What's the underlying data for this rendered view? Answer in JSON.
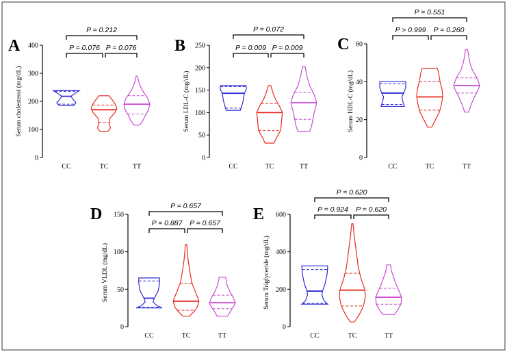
{
  "figure": {
    "background": "#ffffff"
  },
  "colors": {
    "CC": "#2b2bd6",
    "TC": "#e8281e",
    "TT": "#c94bd6"
  },
  "chart_data": [
    {
      "type": "violin",
      "panel": "A",
      "ylabel": "Serum cholesterol (mg/dL)",
      "categories": [
        "CC",
        "TC",
        "TT"
      ],
      "yticks": [
        0,
        100,
        200,
        300,
        400
      ],
      "ylim": [
        0,
        400
      ],
      "groups": [
        {
          "name": "CC",
          "min": 185,
          "max": 238,
          "q1": 190,
          "median": 218,
          "q3": 235,
          "profile": [
            [
              185,
              0.55
            ],
            [
              195,
              0.75
            ],
            [
              205,
              0.55
            ],
            [
              218,
              0.35
            ],
            [
              228,
              0.65
            ],
            [
              238,
              1.0
            ]
          ]
        },
        {
          "name": "TC",
          "min": 93,
          "max": 220,
          "q1": 125,
          "median": 170,
          "q3": 187,
          "profile": [
            [
              93,
              0.3
            ],
            [
              105,
              0.5
            ],
            [
              120,
              0.4
            ],
            [
              140,
              0.45
            ],
            [
              160,
              0.85
            ],
            [
              175,
              1.0
            ],
            [
              195,
              0.8
            ],
            [
              210,
              0.55
            ],
            [
              220,
              0.4
            ]
          ]
        },
        {
          "name": "TT",
          "min": 115,
          "max": 290,
          "q1": 155,
          "median": 190,
          "q3": 220,
          "profile": [
            [
              115,
              0.2
            ],
            [
              130,
              0.45
            ],
            [
              150,
              0.65
            ],
            [
              170,
              0.9
            ],
            [
              190,
              1.0
            ],
            [
              210,
              0.85
            ],
            [
              230,
              0.55
            ],
            [
              250,
              0.3
            ],
            [
              270,
              0.15
            ],
            [
              290,
              0.05
            ]
          ]
        }
      ],
      "comparisons": [
        {
          "pair": [
            "CC",
            "TC"
          ],
          "label": "P = 0.076",
          "level": 1
        },
        {
          "pair": [
            "TC",
            "TT"
          ],
          "label": "P = 0.076",
          "level": 1
        },
        {
          "pair": [
            "CC",
            "TT"
          ],
          "label": "P = 0.212",
          "level": 2
        }
      ]
    },
    {
      "type": "violin",
      "panel": "B",
      "ylabel": "Serum LDL-C (mg/dL)",
      "categories": [
        "CC",
        "TC",
        "TT"
      ],
      "yticks": [
        0,
        50,
        100,
        150,
        200,
        250
      ],
      "ylim": [
        0,
        250
      ],
      "groups": [
        {
          "name": "CC",
          "min": 105,
          "max": 160,
          "q1": 110,
          "median": 143,
          "q3": 158,
          "profile": [
            [
              105,
              0.55
            ],
            [
              115,
              0.65
            ],
            [
              125,
              0.75
            ],
            [
              143,
              0.85
            ],
            [
              152,
              1.0
            ],
            [
              160,
              1.0
            ]
          ]
        },
        {
          "name": "TC",
          "min": 32,
          "max": 160,
          "q1": 60,
          "median": 100,
          "q3": 120,
          "profile": [
            [
              32,
              0.35
            ],
            [
              45,
              0.55
            ],
            [
              60,
              0.85
            ],
            [
              75,
              0.9
            ],
            [
              90,
              0.95
            ],
            [
              100,
              1.0
            ],
            [
              115,
              0.75
            ],
            [
              130,
              0.45
            ],
            [
              145,
              0.25
            ],
            [
              160,
              0.1
            ]
          ]
        },
        {
          "name": "TT",
          "min": 58,
          "max": 202,
          "q1": 85,
          "median": 122,
          "q3": 145,
          "profile": [
            [
              58,
              0.45
            ],
            [
              70,
              0.6
            ],
            [
              85,
              0.7
            ],
            [
              100,
              0.8
            ],
            [
              122,
              1.0
            ],
            [
              140,
              0.8
            ],
            [
              160,
              0.45
            ],
            [
              180,
              0.25
            ],
            [
              202,
              0.1
            ]
          ]
        }
      ],
      "comparisons": [
        {
          "pair": [
            "CC",
            "TC"
          ],
          "label": "P = 0.009",
          "level": 1
        },
        {
          "pair": [
            "TC",
            "TT"
          ],
          "label": "P = 0.009",
          "level": 1
        },
        {
          "pair": [
            "CC",
            "TT"
          ],
          "label": "P = 0.072",
          "level": 2
        }
      ]
    },
    {
      "type": "violin",
      "panel": "C",
      "ylabel": "Serum HDL-C (mg/dL)",
      "categories": [
        "CC",
        "TC",
        "TT"
      ],
      "yticks": [
        0,
        20,
        40,
        60
      ],
      "ylim": [
        0,
        60
      ],
      "groups": [
        {
          "name": "CC",
          "min": 27,
          "max": 40,
          "q1": 28,
          "median": 34,
          "q3": 39,
          "profile": [
            [
              27,
              0.9
            ],
            [
              29,
              0.8
            ],
            [
              32,
              0.7
            ],
            [
              34,
              0.85
            ],
            [
              37,
              1.0
            ],
            [
              40,
              1.0
            ]
          ]
        },
        {
          "name": "TC",
          "min": 16,
          "max": 47,
          "q1": 25,
          "median": 32,
          "q3": 40,
          "profile": [
            [
              16,
              0.15
            ],
            [
              20,
              0.45
            ],
            [
              24,
              0.75
            ],
            [
              28,
              0.9
            ],
            [
              32,
              1.0
            ],
            [
              36,
              0.95
            ],
            [
              40,
              0.8
            ],
            [
              44,
              0.7
            ],
            [
              47,
              0.6
            ]
          ]
        },
        {
          "name": "TT",
          "min": 24,
          "max": 57,
          "q1": 34,
          "median": 38,
          "q3": 42,
          "profile": [
            [
              24,
              0.15
            ],
            [
              28,
              0.35
            ],
            [
              32,
              0.6
            ],
            [
              36,
              0.9
            ],
            [
              38,
              1.0
            ],
            [
              42,
              0.8
            ],
            [
              46,
              0.45
            ],
            [
              50,
              0.25
            ],
            [
              54,
              0.15
            ],
            [
              57,
              0.08
            ]
          ]
        }
      ],
      "comparisons": [
        {
          "pair": [
            "CC",
            "TC"
          ],
          "label": "P > 0.999",
          "level": 1
        },
        {
          "pair": [
            "TC",
            "TT"
          ],
          "label": "P = 0.260",
          "level": 1
        },
        {
          "pair": [
            "CC",
            "TT"
          ],
          "label": "P = 0.551",
          "level": 2
        }
      ]
    },
    {
      "type": "violin",
      "panel": "D",
      "ylabel": "Serum VLDL (mg/dL)",
      "categories": [
        "CC",
        "TC",
        "TT"
      ],
      "yticks": [
        0,
        50,
        100,
        150
      ],
      "ylim": [
        0,
        150
      ],
      "groups": [
        {
          "name": "CC",
          "min": 25,
          "max": 65,
          "q1": 26,
          "median": 38,
          "q3": 61,
          "profile": [
            [
              25,
              1.0
            ],
            [
              28,
              0.6
            ],
            [
              33,
              0.3
            ],
            [
              38,
              0.4
            ],
            [
              48,
              0.7
            ],
            [
              58,
              0.8
            ],
            [
              65,
              0.8
            ]
          ]
        },
        {
          "name": "TC",
          "min": 14,
          "max": 110,
          "q1": 22,
          "median": 34,
          "q3": 58,
          "profile": [
            [
              14,
              0.25
            ],
            [
              20,
              0.6
            ],
            [
              26,
              0.85
            ],
            [
              34,
              1.0
            ],
            [
              45,
              0.75
            ],
            [
              58,
              0.45
            ],
            [
              72,
              0.3
            ],
            [
              90,
              0.15
            ],
            [
              110,
              0.05
            ]
          ]
        },
        {
          "name": "TT",
          "min": 14,
          "max": 66,
          "q1": 24,
          "median": 32,
          "q3": 42,
          "profile": [
            [
              14,
              0.4
            ],
            [
              20,
              0.6
            ],
            [
              28,
              0.9
            ],
            [
              32,
              1.0
            ],
            [
              40,
              0.8
            ],
            [
              48,
              0.55
            ],
            [
              56,
              0.35
            ],
            [
              66,
              0.25
            ]
          ]
        }
      ],
      "comparisons": [
        {
          "pair": [
            "CC",
            "TC"
          ],
          "label": "P = 0.887",
          "level": 1
        },
        {
          "pair": [
            "TC",
            "TT"
          ],
          "label": "P = 0.657",
          "level": 1
        },
        {
          "pair": [
            "CC",
            "TT"
          ],
          "label": "P = 0.657",
          "level": 2
        }
      ]
    },
    {
      "type": "violin",
      "panel": "E",
      "ylabel": "Serum Triglyceride (mg/dL)",
      "categories": [
        "CC",
        "TC",
        "TT"
      ],
      "yticks": [
        0,
        200,
        400,
        600
      ],
      "ylim": [
        0,
        600
      ],
      "groups": [
        {
          "name": "CC",
          "min": 120,
          "max": 325,
          "q1": 125,
          "median": 190,
          "q3": 305,
          "profile": [
            [
              120,
              1.0
            ],
            [
              140,
              0.7
            ],
            [
              170,
              0.55
            ],
            [
              190,
              0.6
            ],
            [
              230,
              0.8
            ],
            [
              280,
              0.95
            ],
            [
              325,
              1.0
            ]
          ]
        },
        {
          "name": "TC",
          "min": 25,
          "max": 550,
          "q1": 110,
          "median": 195,
          "q3": 285,
          "profile": [
            [
              25,
              0.15
            ],
            [
              60,
              0.5
            ],
            [
              110,
              0.85
            ],
            [
              160,
              1.0
            ],
            [
              200,
              0.95
            ],
            [
              260,
              0.65
            ],
            [
              320,
              0.45
            ],
            [
              400,
              0.3
            ],
            [
              480,
              0.15
            ],
            [
              550,
              0.05
            ]
          ]
        },
        {
          "name": "TT",
          "min": 65,
          "max": 330,
          "q1": 120,
          "median": 157,
          "q3": 205,
          "profile": [
            [
              65,
              0.45
            ],
            [
              90,
              0.7
            ],
            [
              120,
              0.95
            ],
            [
              157,
              1.0
            ],
            [
              190,
              0.8
            ],
            [
              230,
              0.55
            ],
            [
              270,
              0.35
            ],
            [
              300,
              0.2
            ],
            [
              330,
              0.15
            ]
          ]
        }
      ],
      "comparisons": [
        {
          "pair": [
            "CC",
            "TC"
          ],
          "label": "P = 0.924",
          "level": 1
        },
        {
          "pair": [
            "TC",
            "TT"
          ],
          "label": "P = 0.620",
          "level": 1
        },
        {
          "pair": [
            "CC",
            "TT"
          ],
          "label": "P = 0.620",
          "level": 2
        }
      ]
    }
  ]
}
